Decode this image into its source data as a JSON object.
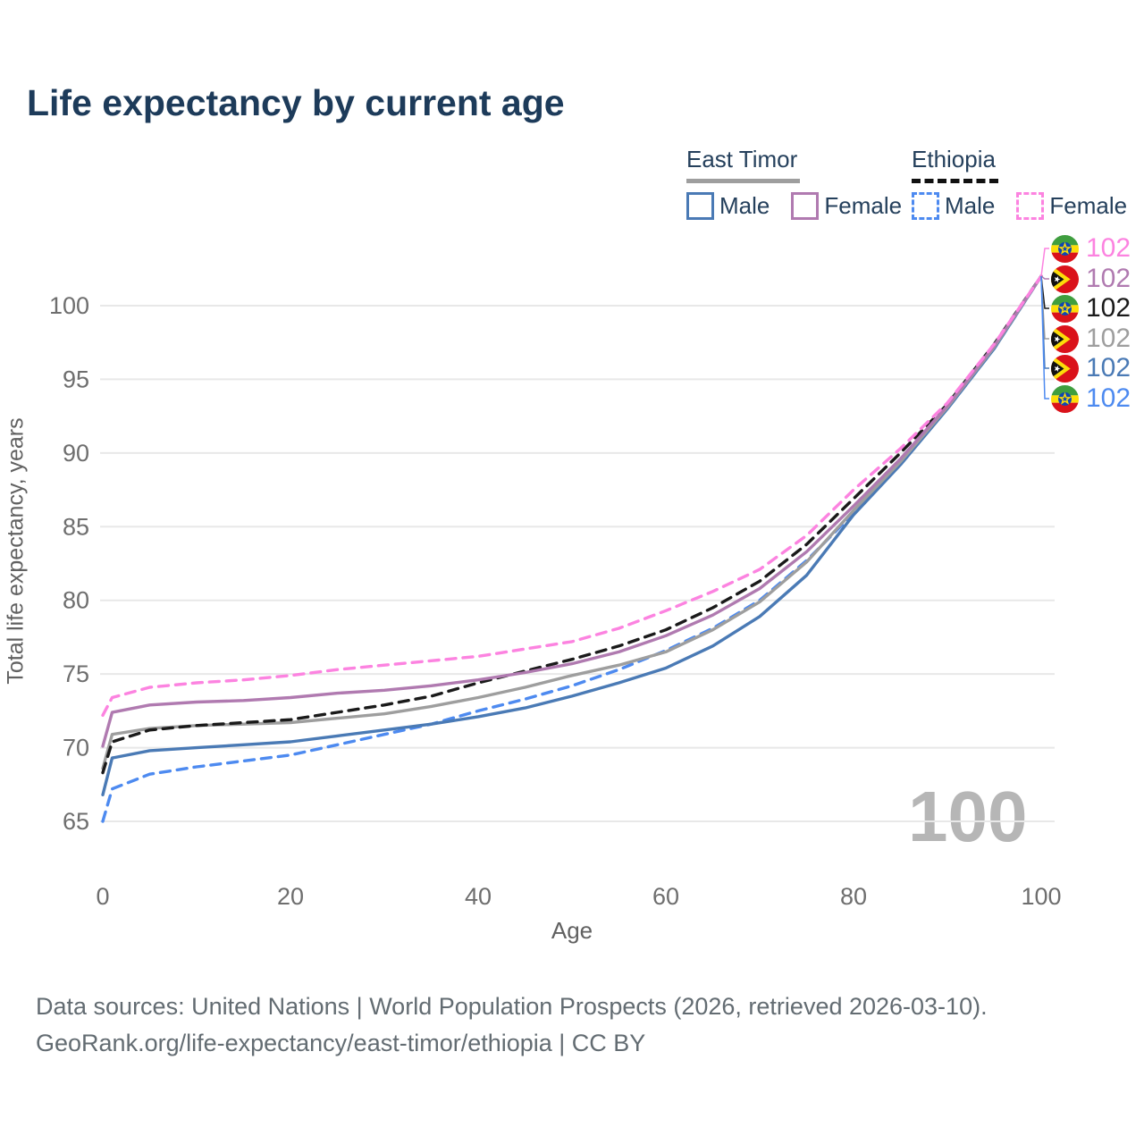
{
  "title": "Life expectancy by current age",
  "colors": {
    "title_text": "#1d3b5a",
    "east_timor_male": "#4a7ab5",
    "east_timor_female": "#b07ab0",
    "east_timor_total": "#9e9e9e",
    "ethiopia_male": "#4d8af0",
    "ethiopia_female": "#fc83e0",
    "ethiopia_total": "#1a1a1a",
    "grid": "#e8e8e8",
    "tick_text": "#6e6e6e",
    "watermark_text": "#b6b6b6"
  },
  "legend": {
    "groups": [
      {
        "label": "East Timor",
        "line_style": "solid",
        "underline_color": "#9e9e9e",
        "items": [
          {
            "label": "Male",
            "color": "#4a7ab5",
            "dashed": false
          },
          {
            "label": "Female",
            "color": "#b07ab0",
            "dashed": false
          }
        ]
      },
      {
        "label": "Ethiopia",
        "line_style": "dashed",
        "underline_color": "#111111",
        "items": [
          {
            "label": "Male",
            "color": "#4d8af0",
            "dashed": true
          },
          {
            "label": "Female",
            "color": "#fc83e0",
            "dashed": true
          }
        ]
      }
    ]
  },
  "watermark": "100",
  "chart_data": {
    "type": "line",
    "title": "Life expectancy by current age",
    "xlabel": "Age",
    "ylabel": "Total life expectancy, years",
    "xlim": [
      0,
      100
    ],
    "ylim": [
      65,
      102
    ],
    "x_ticks": [
      0,
      20,
      40,
      60,
      80,
      100
    ],
    "y_ticks": [
      65,
      70,
      75,
      80,
      85,
      90,
      95,
      100
    ],
    "grid": "horizontal",
    "legend_position": "top-right",
    "x": [
      0,
      1,
      5,
      10,
      15,
      20,
      25,
      30,
      35,
      40,
      45,
      50,
      55,
      60,
      65,
      70,
      75,
      80,
      85,
      90,
      95,
      100
    ],
    "series": [
      {
        "name": "Ethiopia Female",
        "country": "Ethiopia",
        "sex": "Female",
        "flag": "ethiopia",
        "color": "#fc83e0",
        "dashed": true,
        "end_label": "102",
        "values": [
          72.2,
          73.4,
          74.1,
          74.4,
          74.6,
          74.9,
          75.3,
          75.6,
          75.9,
          76.2,
          76.7,
          77.2,
          78.1,
          79.3,
          80.6,
          82.1,
          84.4,
          87.5,
          90.3,
          93.4,
          97.4,
          102
        ]
      },
      {
        "name": "East Timor Female",
        "country": "East Timor",
        "sex": "Female",
        "flag": "east-timor",
        "color": "#b07ab0",
        "dashed": false,
        "end_label": "102",
        "values": [
          70.1,
          72.4,
          72.9,
          73.1,
          73.2,
          73.4,
          73.7,
          73.9,
          74.2,
          74.6,
          75.1,
          75.7,
          76.5,
          77.6,
          79.0,
          80.8,
          83.3,
          86.4,
          89.6,
          93.2,
          97.3,
          102
        ]
      },
      {
        "name": "Ethiopia Total",
        "country": "Ethiopia",
        "sex": "Total",
        "flag": "ethiopia",
        "color": "#1a1a1a",
        "dashed": true,
        "end_label": "102",
        "values": [
          68.3,
          70.4,
          71.2,
          71.5,
          71.7,
          71.9,
          72.4,
          72.9,
          73.5,
          74.4,
          75.2,
          76.0,
          76.9,
          78.0,
          79.5,
          81.3,
          83.8,
          86.9,
          90.0,
          93.3,
          97.4,
          102
        ]
      },
      {
        "name": "East Timor Total",
        "country": "East Timor",
        "sex": "Total",
        "flag": "east-timor",
        "color": "#9e9e9e",
        "dashed": false,
        "end_label": "102",
        "values": [
          68.6,
          70.9,
          71.3,
          71.5,
          71.6,
          71.7,
          72.0,
          72.3,
          72.8,
          73.4,
          74.1,
          74.9,
          75.6,
          76.5,
          78.0,
          79.9,
          82.6,
          86.1,
          89.4,
          93.1,
          97.2,
          102
        ]
      },
      {
        "name": "East Timor Male",
        "country": "East Timor",
        "sex": "Male",
        "flag": "east-timor",
        "color": "#4a7ab5",
        "dashed": false,
        "end_label": "102",
        "values": [
          66.8,
          69.3,
          69.8,
          70.0,
          70.2,
          70.4,
          70.8,
          71.2,
          71.6,
          72.1,
          72.7,
          73.5,
          74.4,
          75.4,
          76.9,
          78.9,
          81.7,
          85.8,
          89.2,
          93.0,
          97.1,
          102
        ]
      },
      {
        "name": "Ethiopia Male",
        "country": "Ethiopia",
        "sex": "Male",
        "flag": "ethiopia",
        "color": "#4d8af0",
        "dashed": true,
        "end_label": "102",
        "values": [
          65.0,
          67.2,
          68.2,
          68.7,
          69.1,
          69.5,
          70.2,
          70.9,
          71.6,
          72.5,
          73.3,
          74.2,
          75.3,
          76.6,
          78.1,
          80.0,
          82.7,
          85.9,
          89.3,
          93.0,
          97.1,
          102
        ]
      }
    ]
  },
  "footer": {
    "line1": "Data sources: United Nations | World Population Prospects (2026, retrieved 2026-03-10).",
    "line2": "GeoRank.org/life-expectancy/east-timor/ethiopia | CC BY"
  }
}
